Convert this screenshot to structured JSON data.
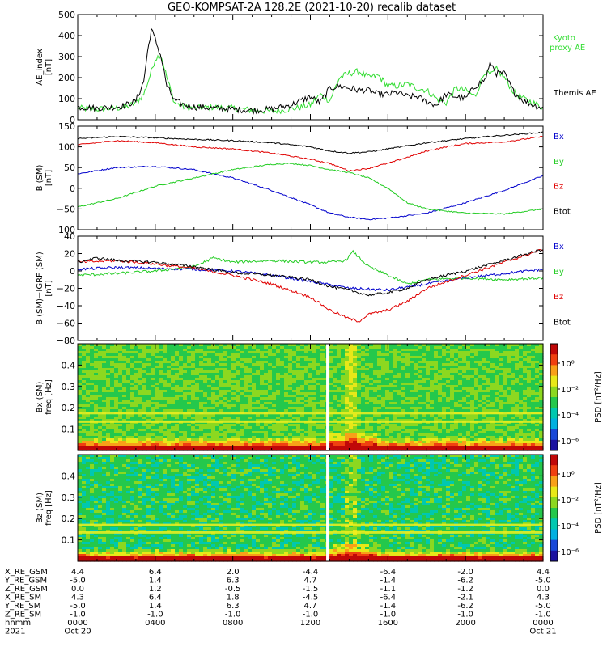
{
  "title": "GEO-KOMPSAT-2A 128.2E (2021-10-20) recalib dataset",
  "colors": {
    "Bx": "#0000cc",
    "By": "#22cc22",
    "Bz": "#e00000",
    "Btot": "#000000",
    "kyoto": "#33dd33",
    "themis": "#000000",
    "marker": "#ffffff"
  },
  "chart_data": [
    {
      "type": "line",
      "panel": "ae",
      "ylabel_lines": [
        "AE_index",
        "[nT]"
      ],
      "ylim": [
        0,
        500
      ],
      "yticks": [
        "0",
        "100",
        "200",
        "300",
        "400",
        "500"
      ],
      "x_hours": [
        0,
        24
      ],
      "legend": [
        {
          "label_lines": [
            "Kyoto",
            "proxy AE"
          ],
          "color_key": "kyoto"
        },
        {
          "label_lines": [
            "Themis AE"
          ],
          "color_key": "themis"
        }
      ],
      "series": [
        {
          "name": "Kyoto proxy AE",
          "color_key": "kyoto",
          "x": [
            0,
            1,
            2,
            2.5,
            3,
            3.4,
            3.7,
            4,
            4.3,
            4.6,
            5,
            5.5,
            6,
            7,
            8,
            9,
            10,
            11,
            12,
            12.5,
            13,
            13.5,
            14,
            14.5,
            15,
            15.5,
            16,
            16.5,
            17,
            17.5,
            18,
            18.5,
            19,
            19.5,
            20,
            20.5,
            21,
            21.3,
            21.6,
            22,
            22.5,
            23,
            23.5,
            24
          ],
          "y": [
            55,
            50,
            55,
            60,
            80,
            120,
            200,
            290,
            310,
            200,
            80,
            60,
            55,
            60,
            55,
            45,
            40,
            50,
            70,
            120,
            90,
            200,
            220,
            230,
            200,
            210,
            160,
            160,
            170,
            150,
            140,
            100,
            80,
            150,
            140,
            110,
            230,
            210,
            240,
            200,
            130,
            100,
            80,
            60
          ]
        },
        {
          "name": "Themis AE",
          "color_key": "themis",
          "x": [
            0,
            1,
            2,
            2.5,
            3,
            3.4,
            3.6,
            3.8,
            4,
            4.3,
            4.6,
            5,
            5.5,
            6,
            7,
            8,
            9,
            10,
            11,
            12,
            12.5,
            13,
            13.5,
            14,
            14.5,
            15,
            15.5,
            16,
            16.5,
            17,
            17.5,
            18,
            18.5,
            19,
            19.5,
            20,
            20.5,
            21,
            21.3,
            21.6,
            22,
            22.5,
            23,
            23.5,
            24
          ],
          "y": [
            60,
            55,
            60,
            70,
            90,
            180,
            320,
            430,
            380,
            300,
            160,
            90,
            70,
            60,
            55,
            50,
            45,
            50,
            70,
            110,
            80,
            150,
            160,
            150,
            140,
            140,
            120,
            120,
            130,
            110,
            110,
            85,
            70,
            120,
            110,
            100,
            160,
            190,
            270,
            220,
            220,
            130,
            90,
            70,
            55
          ]
        }
      ]
    },
    {
      "type": "line",
      "panel": "bsm",
      "ylabel_lines": [
        "B (SM)",
        "[nT]"
      ],
      "ylim": [
        -100,
        150
      ],
      "yticks": [
        "−100",
        "−50",
        "0",
        "50",
        "100",
        "150"
      ],
      "x_hours": [
        0,
        24
      ],
      "legend": [
        {
          "label": "Bx",
          "color_key": "Bx"
        },
        {
          "label": "By",
          "color_key": "By"
        },
        {
          "label": "Bz",
          "color_key": "Bz"
        },
        {
          "label": "Btot",
          "color_key": "Btot"
        }
      ],
      "series": [
        {
          "name": "Bx",
          "color_key": "Bx",
          "x": [
            0,
            2,
            4,
            6,
            8,
            10,
            12,
            13,
            14,
            15,
            16,
            18,
            20,
            22,
            24
          ],
          "y": [
            35,
            50,
            53,
            45,
            25,
            -5,
            -40,
            -60,
            -70,
            -75,
            -72,
            -60,
            -35,
            -5,
            30
          ]
        },
        {
          "name": "By",
          "color_key": "By",
          "x": [
            0,
            2,
            4,
            6,
            8,
            10,
            11,
            12,
            13,
            14,
            15,
            16,
            17,
            18,
            19,
            20,
            22,
            24
          ],
          "y": [
            -45,
            -25,
            5,
            25,
            45,
            58,
            60,
            55,
            45,
            38,
            25,
            0,
            -35,
            -50,
            -55,
            -60,
            -62,
            -50
          ]
        },
        {
          "name": "Bz",
          "color_key": "Bz",
          "x": [
            0,
            2,
            4,
            6,
            8,
            10,
            12,
            13,
            14,
            15,
            15.5,
            16,
            17,
            18,
            19,
            20,
            22,
            24
          ],
          "y": [
            105,
            115,
            110,
            100,
            95,
            85,
            70,
            60,
            42,
            48,
            55,
            60,
            75,
            90,
            100,
            108,
            112,
            125
          ]
        },
        {
          "name": "Btot",
          "color_key": "Btot",
          "x": [
            0,
            2,
            4,
            6,
            8,
            10,
            12,
            13,
            14,
            15,
            16,
            18,
            20,
            22,
            24
          ],
          "y": [
            120,
            125,
            122,
            118,
            115,
            110,
            100,
            90,
            85,
            88,
            95,
            110,
            120,
            128,
            135
          ]
        }
      ]
    },
    {
      "type": "line",
      "panel": "bigrf",
      "ylabel_lines": [
        "B (SM)−IGRF (SM)",
        "[nT]"
      ],
      "ylim": [
        -80,
        40
      ],
      "yticks": [
        "−80",
        "−60",
        "−40",
        "−20",
        "0",
        "20",
        "40"
      ],
      "x_hours": [
        0,
        24
      ],
      "legend": [
        {
          "label": "Bx",
          "color_key": "Bx"
        },
        {
          "label": "By",
          "color_key": "By"
        },
        {
          "label": "Bz",
          "color_key": "Bz"
        },
        {
          "label": "Btot",
          "color_key": "Btot"
        }
      ],
      "series": [
        {
          "name": "Bx",
          "color_key": "Bx",
          "x": [
            0,
            2,
            4,
            6,
            8,
            10,
            12,
            14,
            16,
            18,
            20,
            22,
            24
          ],
          "y": [
            2,
            4,
            3,
            2,
            0,
            -5,
            -12,
            -20,
            -22,
            -15,
            -8,
            -3,
            2
          ]
        },
        {
          "name": "By",
          "color_key": "By",
          "x": [
            0,
            2,
            4,
            6,
            7,
            8,
            10,
            12,
            13,
            13.8,
            14.2,
            15,
            16,
            17,
            18,
            20,
            22,
            24
          ],
          "y": [
            -5,
            -3,
            0,
            5,
            15,
            10,
            12,
            10,
            10,
            12,
            22,
            5,
            -5,
            -15,
            -10,
            -8,
            -10,
            -8
          ]
        },
        {
          "name": "Bz",
          "color_key": "Bz",
          "x": [
            0,
            2,
            4,
            6,
            8,
            10,
            12,
            13,
            14,
            14.5,
            15,
            16,
            17,
            18,
            20,
            22,
            24
          ],
          "y": [
            10,
            12,
            8,
            3,
            -5,
            -15,
            -30,
            -45,
            -55,
            -58,
            -50,
            -45,
            -35,
            -20,
            -5,
            10,
            25
          ]
        },
        {
          "name": "Btot",
          "color_key": "Btot",
          "x": [
            0,
            1,
            2,
            4,
            6,
            8,
            10,
            12,
            13,
            14,
            15,
            16,
            17,
            18,
            20,
            22,
            24
          ],
          "y": [
            10,
            15,
            12,
            10,
            5,
            -2,
            -5,
            -10,
            -18,
            -22,
            -28,
            -25,
            -20,
            -10,
            0,
            12,
            25
          ]
        }
      ]
    },
    {
      "type": "heatmap",
      "panel": "spec_bx",
      "ylabel_lines": [
        "Bx (SM)",
        "freq [Hz]"
      ],
      "ylim": [
        0,
        0.5
      ],
      "yticks": [
        "0.1",
        "0.2",
        "0.3",
        "0.4"
      ],
      "colorbar": {
        "label": "PSD [nT²/Hz]",
        "ticks": [
          "10⁰",
          "10⁻²",
          "10⁻⁴",
          "10⁻⁶"
        ]
      },
      "lines_hz": [
        0.175,
        0.135
      ],
      "gap_hour": 12.9
    },
    {
      "type": "heatmap",
      "panel": "spec_bz",
      "ylabel_lines": [
        "Bz (SM)",
        "freq [Hz]"
      ],
      "ylim": [
        0,
        0.5
      ],
      "yticks": [
        "0.1",
        "0.2",
        "0.3",
        "0.4"
      ],
      "colorbar": {
        "label": "PSD [nT²/Hz]",
        "ticks": [
          "10⁰",
          "10⁻²",
          "10⁻⁴",
          "10⁻⁶"
        ]
      },
      "lines_hz": [
        0.17,
        0.135
      ],
      "gap_hour": 12.9
    }
  ],
  "orbit_table": {
    "row_labels": [
      "X_RE_GSM",
      "Y_RE_GSM",
      "Z_RE_GSM",
      "X_RE_SM",
      "Y_RE_SM",
      "Z_RE_SM",
      "hhmm",
      "2021"
    ],
    "columns": [
      [
        "4.4",
        "-5.0",
        "0.0",
        "4.3",
        "-5.0",
        "-1.0",
        "0000",
        "Oct 20"
      ],
      [
        "6.4",
        "1.4",
        "1.2",
        "6.4",
        "1.4",
        "-1.0",
        "0400",
        ""
      ],
      [
        "2.0",
        "6.3",
        "-0.5",
        "1.8",
        "6.3",
        "-1.0",
        "0800",
        ""
      ],
      [
        "-4.4",
        "4.7",
        "-1.5",
        "-4.5",
        "4.7",
        "-1.0",
        "1200",
        ""
      ],
      [
        "-6.4",
        "-1.4",
        "-1.1",
        "-6.4",
        "-1.4",
        "-1.0",
        "1600",
        ""
      ],
      [
        "-2.0",
        "-6.2",
        "-1.2",
        "-2.1",
        "-6.2",
        "-1.0",
        "2000",
        ""
      ],
      [
        "4.4",
        "-5.0",
        "0.0",
        "4.3",
        "-5.0",
        "-1.0",
        "0000",
        "Oct 21"
      ]
    ]
  }
}
